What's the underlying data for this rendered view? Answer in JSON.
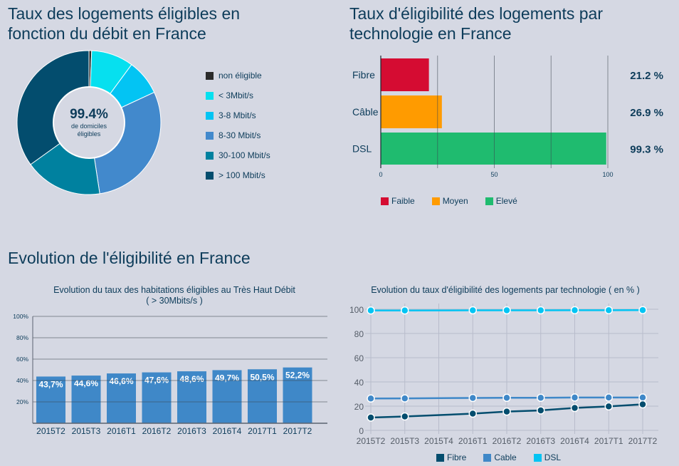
{
  "titles": {
    "donut": "Taux des logements éligibles en fonction du débit en France",
    "bar": "Taux d'éligibilité des logements par technologie en France",
    "evolution": "Evolution de l'éligibilité en France"
  },
  "chart_data": [
    {
      "type": "pie",
      "variant": "donut",
      "title": "Taux des logements éligibles en fonction du débit en France",
      "center_value": "99.4%",
      "center_label_1": "de domiciles",
      "center_label_2": "éligibles",
      "legend_position": "right",
      "slices": [
        {
          "label": "non éligible",
          "value": 0.6,
          "color": "#2b2b2b"
        },
        {
          "label": "< 3Mbit/s",
          "value": 9.5,
          "color": "#06e0ef"
        },
        {
          "label": "3-8 Mbit/s",
          "value": 8.0,
          "color": "#03c4f3"
        },
        {
          "label": "8-30 Mbit/s",
          "value": 29.5,
          "color": "#4289cc"
        },
        {
          "label": "30-100 Mbit/s",
          "value": 17.5,
          "color": "#00819f"
        },
        {
          "label": "> 100 Mbit/s",
          "value": 34.9,
          "color": "#034d6e"
        }
      ]
    },
    {
      "type": "bar",
      "orientation": "horizontal",
      "title": "Taux d'éligibilité des logements par technologie en France",
      "categories": [
        "Fibre",
        "Câble",
        "DSL"
      ],
      "values": [
        21.2,
        26.9,
        99.3
      ],
      "value_labels": [
        "21.2 %",
        "26.9 %",
        "99.3 %"
      ],
      "bar_colors": [
        "#d50c32",
        "#ff9b00",
        "#1fbb6f"
      ],
      "xlim": [
        0,
        100
      ],
      "xticks": [
        "0",
        "50",
        "100"
      ],
      "grid_values": [
        0,
        25,
        50,
        75,
        100
      ],
      "legend": [
        {
          "label": "Faible",
          "color": "#d50c32"
        },
        {
          "label": "Moyen",
          "color": "#ff9b00"
        },
        {
          "label": "Elevé",
          "color": "#1fbb6f"
        }
      ],
      "legend_position": "bottom-left"
    },
    {
      "type": "bar",
      "title": "Evolution du taux des habitations éligibles au Très Haut Débit",
      "subtitle": "( > 30Mbits/s )",
      "categories": [
        "2015T2",
        "2015T3",
        "2016T1",
        "2016T2",
        "2016T3",
        "2016T4",
        "2017T1",
        "2017T2"
      ],
      "values": [
        43.7,
        44.6,
        46.6,
        47.6,
        48.6,
        49.7,
        50.5,
        52.2
      ],
      "value_labels": [
        "43,7%",
        "44,6%",
        "46,6%",
        "47,6%",
        "48,6%",
        "49,7%",
        "50,5%",
        "52,2%"
      ],
      "ylim": [
        0,
        100
      ],
      "yticks": [
        "20%",
        "40%",
        "60%",
        "80%",
        "100%"
      ],
      "ytick_values": [
        20,
        40,
        60,
        80,
        100
      ],
      "bar_color": "#3f88c8",
      "grid": true
    },
    {
      "type": "line",
      "title": "Evolution du taux d'éligibilité des logements par technologie ( en % )",
      "x": [
        "2015T2",
        "2015T3",
        "2015T4",
        "2016T1",
        "2016T2",
        "2016T3",
        "2016T4",
        "2017T1",
        "2017T2"
      ],
      "ylim": [
        0,
        100
      ],
      "yticks": [
        "0",
        "20",
        "40",
        "60",
        "80",
        "100"
      ],
      "ytick_values": [
        0,
        20,
        40,
        60,
        80,
        100
      ],
      "grid": true,
      "legend_position": "bottom",
      "series": [
        {
          "name": "Fibre",
          "color": "#034d6e",
          "values": [
            10.6,
            11.5,
            null,
            13.8,
            15.5,
            16.5,
            18.5,
            19.8,
            21.5
          ]
        },
        {
          "name": "Cable",
          "color": "#3f88c8",
          "values": [
            26.3,
            26.4,
            null,
            26.8,
            26.9,
            26.9,
            27.1,
            27.1,
            27.1
          ]
        },
        {
          "name": "DSL",
          "color": "#03c4f3",
          "values": [
            99.0,
            99.0,
            null,
            99.1,
            99.1,
            99.1,
            99.2,
            99.2,
            99.3
          ]
        }
      ]
    }
  ]
}
